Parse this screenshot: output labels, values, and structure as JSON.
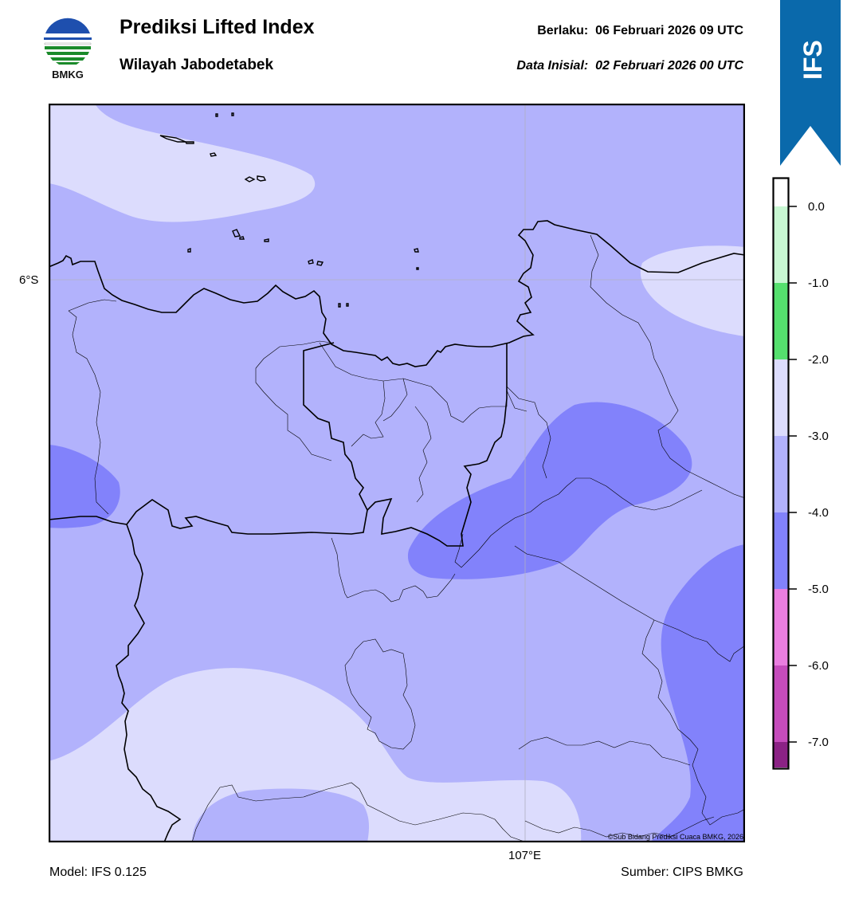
{
  "header": {
    "logo_text": "BMKG",
    "title": "Prediksi Lifted Index",
    "subtitle": "Wilayah Jabodetabek",
    "valid_label": "Berlaku:",
    "valid_time": "06 Februari 2026 09 UTC",
    "init_label": "Data Inisial:",
    "init_time": "02 Februari 2026 00 UTC"
  },
  "ribbon": {
    "text": "IFS",
    "color": "#0a69ab"
  },
  "map": {
    "lat_label": "6°S",
    "lon_label": "107°E",
    "credit": "©Sub Bidang Prediksi Cuaca BMKG, 2026"
  },
  "legend": {
    "ticks": [
      "0.0",
      "-1.0",
      "-2.0",
      "-3.0",
      "-4.0",
      "-5.0",
      "-6.0",
      "-7.0"
    ],
    "colors": {
      "above_0": "#ffffff",
      "0_to_-1": "#c8f7d2",
      "-1_to_-2": "#55e06e",
      "-2_to_-3": "#dcdcfd",
      "-3_to_-4": "#b2b2fc",
      "-4_to_-5": "#8282fb",
      "-5_to_-6": "#ea7ee0",
      "-6_to_-7": "#c54cbc",
      "below_-7": "#8b2285"
    }
  },
  "footer": {
    "model": "Model: IFS 0.125",
    "source": "Sumber: CIPS BMKG"
  }
}
